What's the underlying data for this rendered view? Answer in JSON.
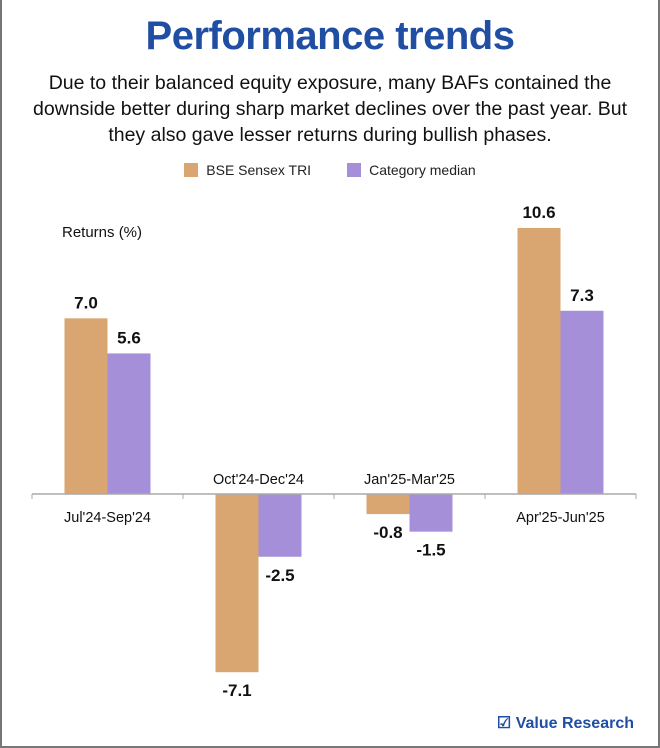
{
  "title": "Performance trends",
  "subtitle": "Due to their balanced equity exposure, many BAFs contained the downside better during sharp market declines over the past year. But they also gave lesser returns during bullish phases.",
  "logo_text": "Value Research",
  "colors": {
    "title": "#1f4ea3",
    "sensex": "#d9a570",
    "median": "#a58fd9"
  },
  "chart_data": {
    "type": "bar",
    "ylabel": "Returns (%)",
    "categories": [
      "Jul'24-Sep'24",
      "Oct'24-Dec'24",
      "Jan'25-Mar'25",
      "Apr'25-Jun'25"
    ],
    "series": [
      {
        "name": "BSE Sensex TRI",
        "values": [
          7.0,
          -7.1,
          -0.8,
          10.6
        ]
      },
      {
        "name": "Category median",
        "values": [
          5.6,
          -2.5,
          -1.5,
          7.3
        ]
      }
    ],
    "legend": "top-center",
    "grid": false
  }
}
